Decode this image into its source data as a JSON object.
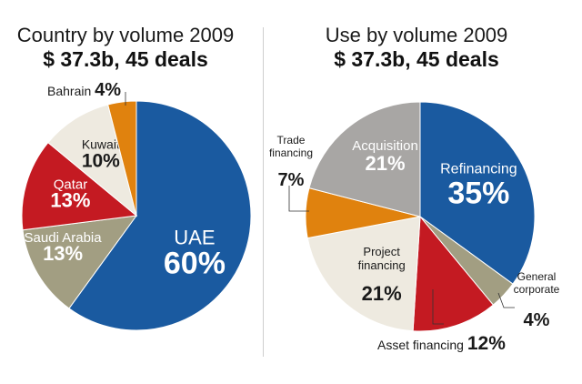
{
  "chart_data": [
    {
      "type": "pie",
      "title": "Country by volume 2009",
      "subtitle": "$ 37.3b, 45 deals",
      "categories": [
        "UAE",
        "Saudi Arabia",
        "Qatar",
        "Kuwait",
        "Bahrain"
      ],
      "values": [
        60,
        13,
        13,
        10,
        4
      ],
      "value_labels": [
        "60%",
        "13%",
        "13%",
        "10%",
        "4%"
      ],
      "colors": [
        "#1a5aa0",
        "#a29e82",
        "#c41a22",
        "#eeeae0",
        "#e0820e"
      ]
    },
    {
      "type": "pie",
      "title": "Use by volume 2009",
      "subtitle": "$ 37.3b, 45 deals",
      "categories": [
        "Refinancing",
        "General corporate",
        "Asset financing",
        "Project financing",
        "Trade financing",
        "Acquisition"
      ],
      "display_labels": [
        "Refinancing",
        "General\ncorporate",
        "Asset financing",
        "Project\nfinancing",
        "Trade\nfinancing",
        "Acquisition"
      ],
      "values": [
        35,
        4,
        12,
        21,
        7,
        21
      ],
      "value_labels": [
        "35%",
        "4%",
        "12%",
        "21%",
        "7%",
        "21%"
      ],
      "colors": [
        "#1a5aa0",
        "#a29e82",
        "#c41a22",
        "#eeeae0",
        "#e0820e",
        "#a8a6a4"
      ]
    }
  ]
}
